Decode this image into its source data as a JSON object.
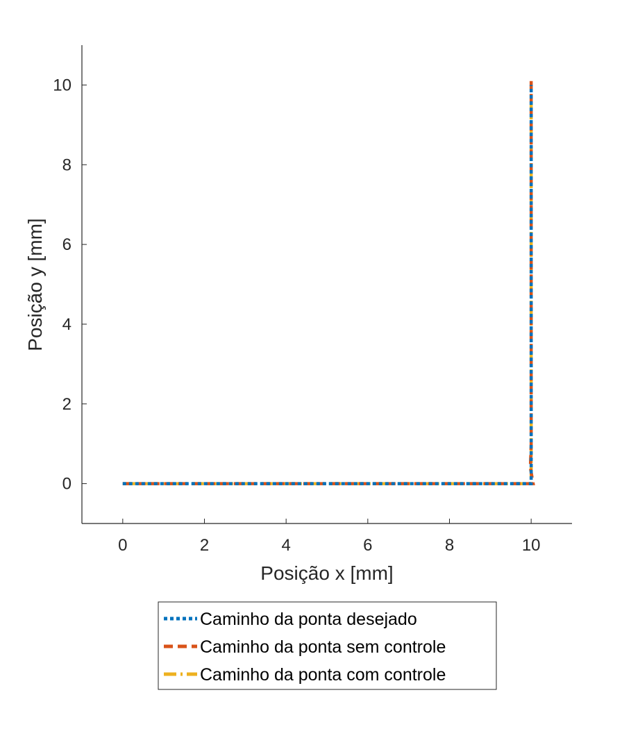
{
  "chart_data": {
    "type": "line",
    "xlabel": "Posição x [mm]",
    "ylabel": "Posição y [mm]",
    "xlim": [
      -1,
      11
    ],
    "ylim": [
      -1,
      11
    ],
    "xticks": [
      0,
      2,
      4,
      6,
      8,
      10
    ],
    "yticks": [
      0,
      2,
      4,
      6,
      8,
      10
    ],
    "grid": false,
    "legend_position": "bottom-outside",
    "series": [
      {
        "name": "Caminho da ponta desejado",
        "color": "#0072BD",
        "style": "dotted",
        "x": [
          0,
          10,
          10
        ],
        "y": [
          0,
          0,
          10
        ]
      },
      {
        "name": "Caminho da ponta sem controle",
        "color": "#D95319",
        "style": "dashed",
        "x": [
          0,
          10.05,
          9.98,
          10,
          10
        ],
        "y": [
          0,
          0,
          0.4,
          1.0,
          10.1
        ]
      },
      {
        "name": "Caminho da ponta com controle",
        "color": "#EDB120",
        "style": "dash-dot",
        "x": [
          0,
          10,
          10
        ],
        "y": [
          0,
          0,
          10
        ]
      }
    ]
  }
}
